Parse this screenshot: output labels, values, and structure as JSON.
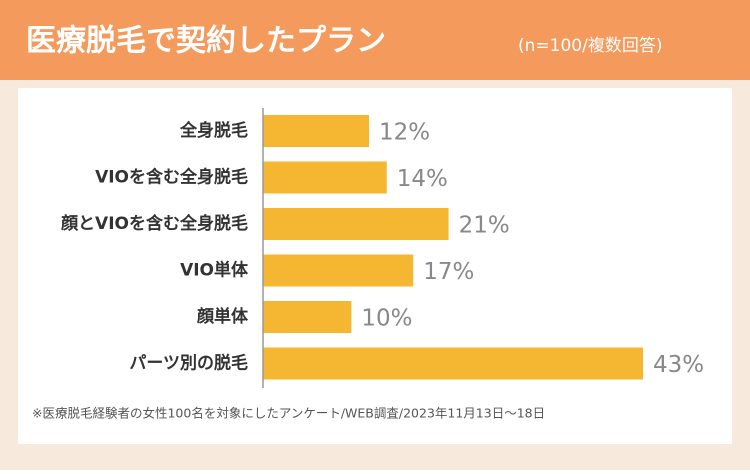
{
  "chart_data": {
    "type": "bar",
    "orientation": "horizontal",
    "title": "医療脱毛で契約したプラン",
    "subtitle": "(n=100/複数回答)",
    "categories": [
      "全身脱毛",
      "VIOを含む全身脱毛",
      "顔とVIOを含む全身脱毛",
      "VIO単体",
      "顔単体",
      "パーツ別の脱毛"
    ],
    "values": [
      12,
      14,
      21,
      17,
      10,
      43
    ],
    "value_labels": [
      "12%",
      "14%",
      "21%",
      "17%",
      "10%",
      "43%"
    ],
    "color": "#f5b731",
    "note": "※医療脱毛経験者の女性100名を対象にしたアンケート/WEB調査/2023年11月13日〜18日"
  }
}
